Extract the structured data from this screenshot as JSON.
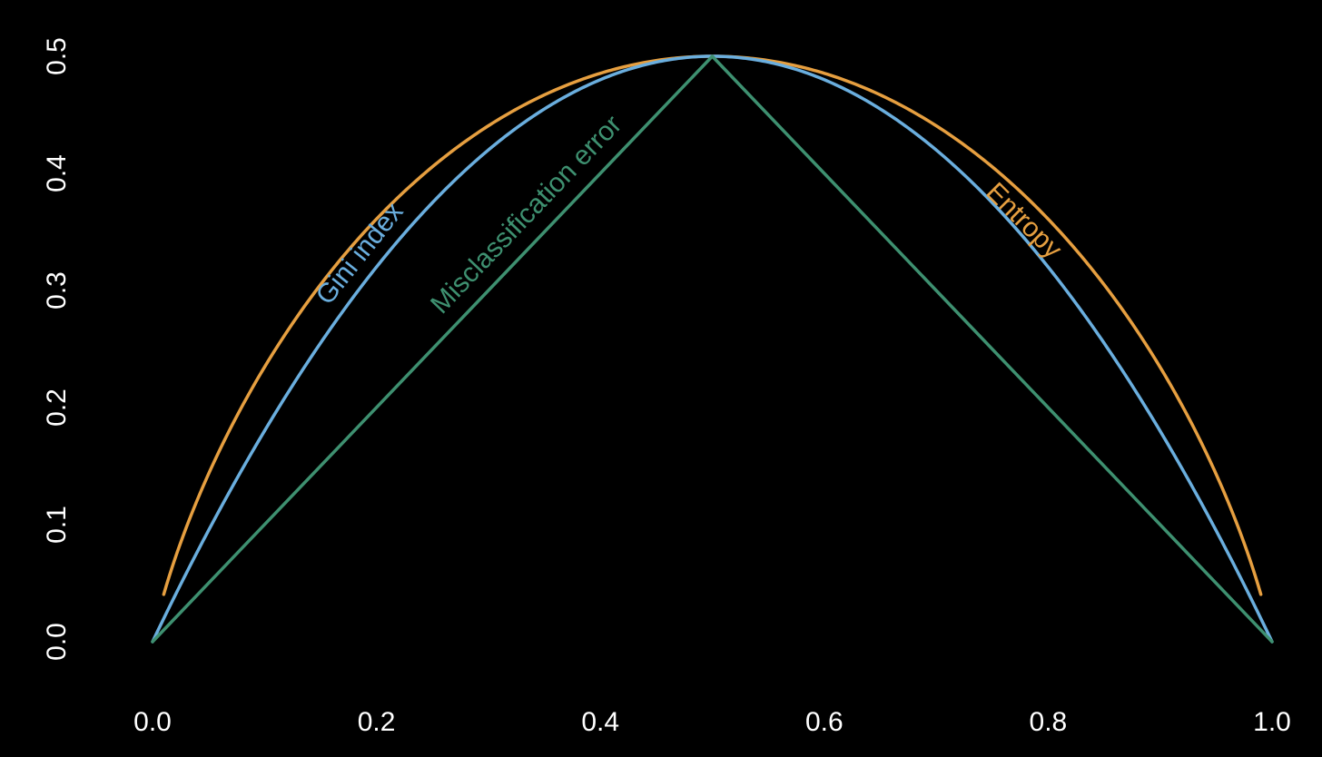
{
  "chart_data": {
    "type": "line",
    "title": "",
    "xlabel": "",
    "ylabel": "",
    "xlim": [
      0.0,
      1.0
    ],
    "ylim": [
      0.0,
      0.5
    ],
    "grid": false,
    "background": "#000000",
    "x_ticks": [
      {
        "value": 0.0,
        "label": "0.0"
      },
      {
        "value": 0.2,
        "label": "0.2"
      },
      {
        "value": 0.4,
        "label": "0.4"
      },
      {
        "value": 0.6,
        "label": "0.6"
      },
      {
        "value": 0.8,
        "label": "0.8"
      },
      {
        "value": 1.0,
        "label": "1.0"
      }
    ],
    "y_ticks": [
      {
        "value": 0.0,
        "label": "0.0"
      },
      {
        "value": 0.1,
        "label": "0.1"
      },
      {
        "value": 0.2,
        "label": "0.2"
      },
      {
        "value": 0.3,
        "label": "0.3"
      },
      {
        "value": 0.4,
        "label": "0.4"
      },
      {
        "value": 0.5,
        "label": "0.5"
      }
    ],
    "series": [
      {
        "key": "entropy",
        "name": "Entropy",
        "color": "#E69F40",
        "formula": "-(p*log2(p) + (1-p)*log2(1-p)) / 2",
        "label_at_x": 0.79,
        "x": [
          0.01,
          0.05,
          0.1,
          0.15,
          0.2,
          0.25,
          0.3,
          0.35,
          0.4,
          0.45,
          0.5,
          0.55,
          0.6,
          0.65,
          0.7,
          0.75,
          0.8,
          0.85,
          0.9,
          0.95,
          0.99
        ],
        "y": [
          0.04,
          0.143,
          0.234,
          0.305,
          0.361,
          0.406,
          0.441,
          0.467,
          0.485,
          0.496,
          0.5,
          0.496,
          0.485,
          0.467,
          0.441,
          0.406,
          0.361,
          0.305,
          0.234,
          0.143,
          0.04
        ]
      },
      {
        "key": "gini",
        "name": "Gini index",
        "color": "#6AAEDE",
        "formula": "2*p*(1-p)",
        "label_at_x": 0.2,
        "x": [
          0.0,
          0.05,
          0.1,
          0.15,
          0.2,
          0.25,
          0.3,
          0.35,
          0.4,
          0.45,
          0.5,
          0.55,
          0.6,
          0.65,
          0.7,
          0.75,
          0.8,
          0.85,
          0.9,
          0.95,
          1.0
        ],
        "y": [
          0.0,
          0.095,
          0.18,
          0.255,
          0.32,
          0.375,
          0.42,
          0.455,
          0.48,
          0.495,
          0.5,
          0.495,
          0.48,
          0.455,
          0.42,
          0.375,
          0.32,
          0.255,
          0.18,
          0.095,
          0.0
        ]
      },
      {
        "key": "misclassification",
        "name": "Misclassification error",
        "color": "#3E9070",
        "formula": "min(p, 1-p)",
        "label_at_x": 0.35,
        "x": [
          0.0,
          0.5,
          1.0
        ],
        "y": [
          0.0,
          0.5,
          0.0
        ]
      }
    ]
  }
}
